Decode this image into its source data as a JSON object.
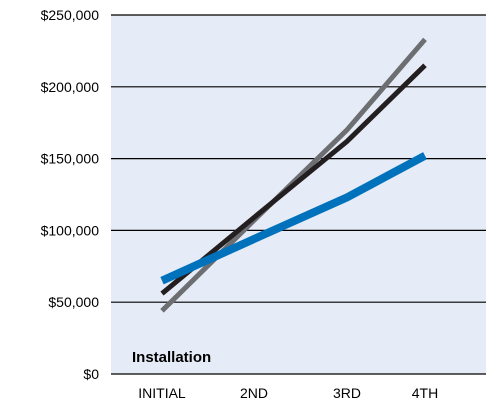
{
  "chart_data": {
    "type": "line",
    "title": "",
    "xlabel": "",
    "ylabel": "",
    "categories": [
      "INITIAL",
      "2ND",
      "3RD",
      "4TH"
    ],
    "y_ticks": [
      "$0",
      "$50,000",
      "$100,000",
      "$150,000",
      "$200,000",
      "$250,000"
    ],
    "y_tick_values": [
      0,
      50000,
      100000,
      150000,
      200000,
      250000
    ],
    "ylim": [
      0,
      250000
    ],
    "grid": "horizontal",
    "annotation": "Installation",
    "background_color": "#e6ecf7",
    "series": [
      {
        "color": "#6d6e71",
        "values": [
          44000,
          107000,
          170000,
          233000
        ]
      },
      {
        "color": "#231f20",
        "values": [
          56000,
          109000,
          162000,
          215000
        ]
      },
      {
        "color": "#0072bc",
        "values": [
          65000,
          94000,
          123000,
          152000
        ]
      }
    ]
  }
}
